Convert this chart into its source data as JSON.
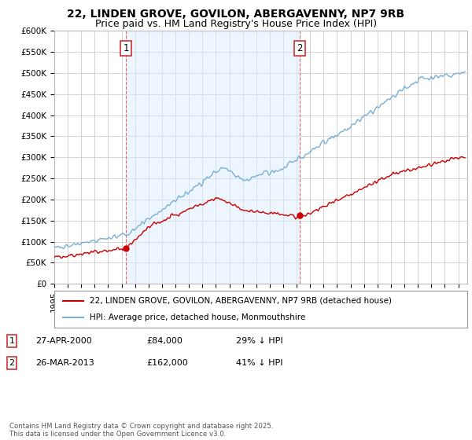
{
  "title": "22, LINDEN GROVE, GOVILON, ABERGAVENNY, NP7 9RB",
  "subtitle": "Price paid vs. HM Land Registry's House Price Index (HPI)",
  "title_fontsize": 10,
  "subtitle_fontsize": 9,
  "background_color": "#ffffff",
  "plot_bg_color": "#ffffff",
  "grid_color": "#cccccc",
  "ylim": [
    0,
    600000
  ],
  "yticks": [
    0,
    50000,
    100000,
    150000,
    200000,
    250000,
    300000,
    350000,
    400000,
    450000,
    500000,
    550000,
    600000
  ],
  "ytick_labels": [
    "£0",
    "£50K",
    "£100K",
    "£150K",
    "£200K",
    "£250K",
    "£300K",
    "£350K",
    "£400K",
    "£450K",
    "£500K",
    "£550K",
    "£600K"
  ],
  "sale1": {
    "date": "2000-04-27",
    "price": 84000,
    "label": "1",
    "hpi_pct": 29
  },
  "sale2": {
    "date": "2013-03-26",
    "price": 162000,
    "label": "2",
    "hpi_pct": 41
  },
  "legend_line1": "22, LINDEN GROVE, GOVILON, ABERGAVENNY, NP7 9RB (detached house)",
  "legend_line2": "HPI: Average price, detached house, Monmouthshire",
  "footer": "Contains HM Land Registry data © Crown copyright and database right 2025.\nThis data is licensed under the Open Government Licence v3.0.",
  "house_color": "#cc0000",
  "hpi_color": "#7ab0d4",
  "hpi_fill_color": "#ddeeff",
  "sale_marker_color": "#cc0000",
  "dashed_line_color": "#dd4444"
}
